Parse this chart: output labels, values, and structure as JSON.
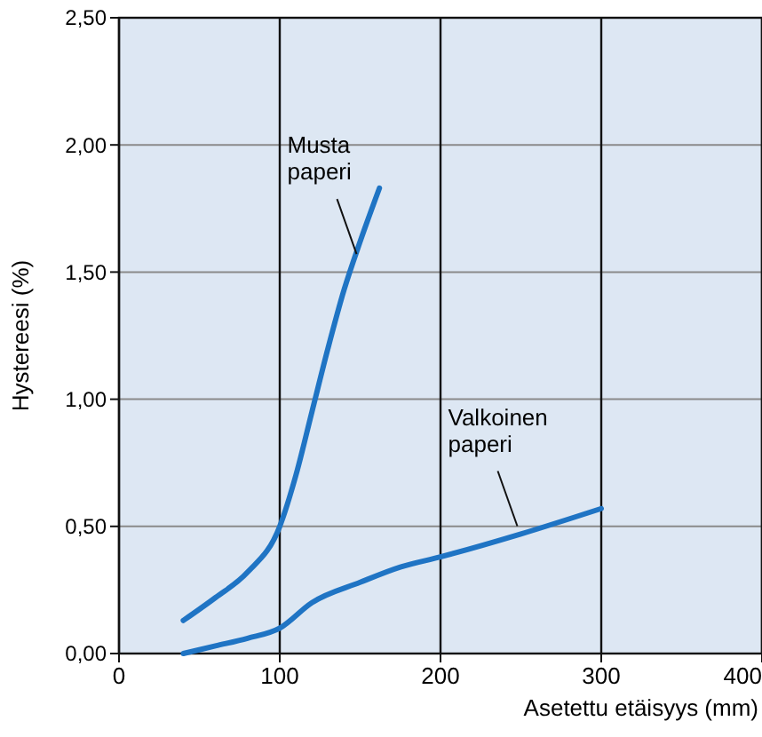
{
  "chart_data": {
    "type": "line",
    "xlabel": "Asetettu etäisyys (mm)",
    "ylabel": "Hystereesi (%)",
    "xlim": [
      0,
      400
    ],
    "xticks": [
      0,
      100,
      200,
      300,
      400
    ],
    "ylim": [
      0,
      2.5
    ],
    "yticks": [
      {
        "value": 0,
        "label": "0,00"
      },
      {
        "value": 0.5,
        "label": "0,50"
      },
      {
        "value": 1,
        "label": "1,00"
      },
      {
        "value": 1.5,
        "label": "1,50"
      },
      {
        "value": 2,
        "label": "2,00"
      },
      {
        "value": 2.5,
        "label": "2,50"
      }
    ],
    "grid": true,
    "marker": "none",
    "line_style": "solid",
    "series": [
      {
        "color": "#1f74c4",
        "x": [
          40,
          60,
          80,
          100,
          110,
          120,
          130,
          140,
          150,
          162
        ],
        "values": [
          0.13,
          0.22,
          0.32,
          0.5,
          0.7,
          0.95,
          1.2,
          1.43,
          1.62,
          1.83
        ]
      },
      {
        "color": "#1f74c4",
        "x": [
          40,
          60,
          80,
          100,
          120,
          150,
          175,
          200,
          250,
          300
        ],
        "values": [
          0,
          0.03,
          0.06,
          0.1,
          0.2,
          0.28,
          0.34,
          0.38,
          0.47,
          0.57
        ]
      }
    ],
    "annotations": [
      {
        "text": "Musta\npaperi",
        "x": 150,
        "y": 1.55
      },
      {
        "text": "Valkoinen\npaperi",
        "x": 250,
        "y": 0.48
      }
    ]
  }
}
